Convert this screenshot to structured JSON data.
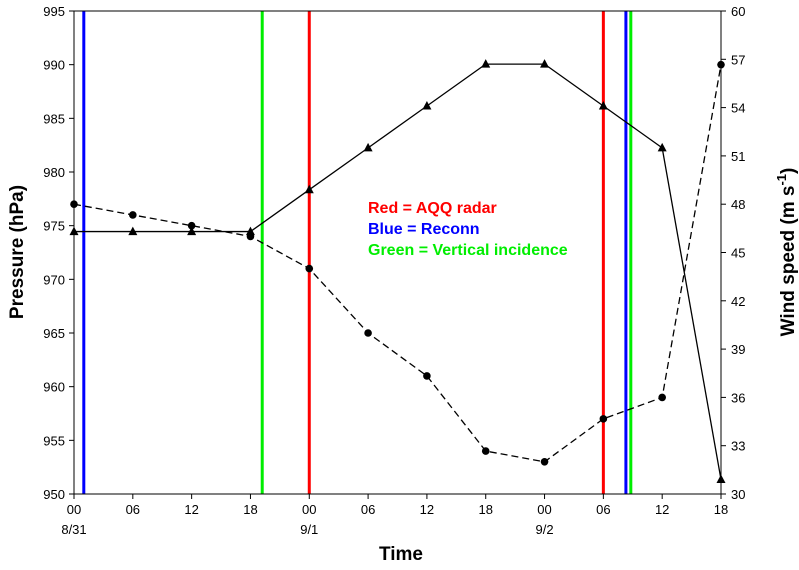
{
  "chart_data": {
    "type": "line",
    "xlabel": "Time",
    "ylabel_left": "Pressure (hPa)",
    "ylabel_right_main": "Wind speed (m s",
    "ylabel_right_sup": "-1",
    "ylabel_right_close": ")",
    "x_ticks": [
      {
        "hour": 0,
        "label": "00",
        "date": "8/31"
      },
      {
        "hour": 6,
        "label": "06",
        "date": ""
      },
      {
        "hour": 12,
        "label": "12",
        "date": ""
      },
      {
        "hour": 18,
        "label": "18",
        "date": ""
      },
      {
        "hour": 24,
        "label": "00",
        "date": "9/1"
      },
      {
        "hour": 30,
        "label": "06",
        "date": ""
      },
      {
        "hour": 36,
        "label": "12",
        "date": ""
      },
      {
        "hour": 42,
        "label": "18",
        "date": ""
      },
      {
        "hour": 48,
        "label": "00",
        "date": "9/2"
      },
      {
        "hour": 54,
        "label": "06",
        "date": ""
      },
      {
        "hour": 60,
        "label": "12",
        "date": ""
      },
      {
        "hour": 66,
        "label": "18",
        "date": ""
      }
    ],
    "xlim": [
      0,
      66
    ],
    "ylim_left": [
      950,
      995
    ],
    "yticks_left": [
      950,
      955,
      960,
      965,
      970,
      975,
      980,
      985,
      990,
      995
    ],
    "ylim_right": [
      30,
      60
    ],
    "yticks_right": [
      30,
      33,
      36,
      39,
      42,
      45,
      48,
      51,
      54,
      57,
      60
    ],
    "series": [
      {
        "axis": "left",
        "marker": "circle",
        "dash": "dashed",
        "color": "#000000",
        "x": [
          0,
          6,
          12,
          18,
          24,
          30,
          36,
          42,
          48,
          54,
          60,
          66
        ],
        "y": [
          977,
          976,
          975,
          974,
          971,
          965,
          961,
          954,
          953,
          957,
          959,
          990
        ]
      },
      {
        "axis": "right",
        "marker": "triangle",
        "dash": "solid",
        "color": "#000000",
        "x": [
          0,
          6,
          12,
          18,
          24,
          30,
          36,
          42,
          48,
          54,
          60,
          66
        ],
        "y": [
          46.3,
          46.3,
          46.3,
          46.3,
          48.9,
          51.5,
          54.1,
          56.7,
          56.7,
          54.1,
          51.5,
          30.9
        ]
      }
    ],
    "vertical_lines": [
      {
        "hour": 1.0,
        "color": "#0000ff"
      },
      {
        "hour": 19.2,
        "color": "#00ee00"
      },
      {
        "hour": 24.0,
        "color": "#ff0000"
      },
      {
        "hour": 54.0,
        "color": "#ff0000"
      },
      {
        "hour": 56.3,
        "color": "#0000ff"
      },
      {
        "hour": 56.8,
        "color": "#00ee00"
      }
    ],
    "annotations": [
      {
        "text": "Red = AQQ radar",
        "color": "#ff0000"
      },
      {
        "text": "Blue = Reconn",
        "color": "#0000ff"
      },
      {
        "text": "Green = Vertical incidence",
        "color": "#00ee00"
      }
    ]
  }
}
